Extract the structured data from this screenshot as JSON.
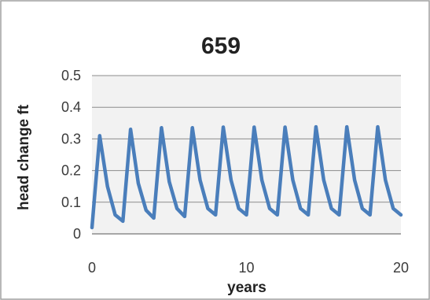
{
  "chart_data": {
    "type": "line",
    "title": "659",
    "xlabel": "years",
    "ylabel": "head change ft",
    "xlim": [
      0,
      20
    ],
    "ylim": [
      0,
      0.5
    ],
    "x_ticks": [
      "0",
      "10",
      "20"
    ],
    "y_ticks": [
      "0",
      "0.1",
      "0.2",
      "0.3",
      "0.4",
      "0.5"
    ],
    "grid": true,
    "legend": "none",
    "colors": {
      "line": "#4a7ebb",
      "plot_background": "#f2f2f2",
      "grid": "#8c8c8c",
      "frame": "#a0a0a0"
    },
    "series": [
      {
        "points": [
          [
            0.0,
            0.02
          ],
          [
            0.5,
            0.31
          ],
          [
            1.0,
            0.15
          ],
          [
            1.5,
            0.06
          ],
          [
            2.0,
            0.04
          ],
          [
            2.5,
            0.33
          ],
          [
            3.0,
            0.16
          ],
          [
            3.5,
            0.075
          ],
          [
            4.0,
            0.05
          ],
          [
            4.5,
            0.335
          ],
          [
            5.0,
            0.165
          ],
          [
            5.5,
            0.08
          ],
          [
            6.0,
            0.055
          ],
          [
            6.5,
            0.335
          ],
          [
            7.0,
            0.17
          ],
          [
            7.5,
            0.08
          ],
          [
            8.0,
            0.06
          ],
          [
            8.5,
            0.337
          ],
          [
            9.0,
            0.17
          ],
          [
            9.5,
            0.08
          ],
          [
            10.0,
            0.06
          ],
          [
            10.5,
            0.337
          ],
          [
            11.0,
            0.17
          ],
          [
            11.5,
            0.08
          ],
          [
            12.0,
            0.06
          ],
          [
            12.5,
            0.337
          ],
          [
            13.0,
            0.17
          ],
          [
            13.5,
            0.08
          ],
          [
            14.0,
            0.06
          ],
          [
            14.5,
            0.338
          ],
          [
            15.0,
            0.17
          ],
          [
            15.5,
            0.08
          ],
          [
            16.0,
            0.06
          ],
          [
            16.5,
            0.338
          ],
          [
            17.0,
            0.17
          ],
          [
            17.5,
            0.08
          ],
          [
            18.0,
            0.06
          ],
          [
            18.5,
            0.338
          ],
          [
            19.0,
            0.17
          ],
          [
            19.5,
            0.08
          ],
          [
            20.0,
            0.06
          ]
        ]
      }
    ]
  }
}
